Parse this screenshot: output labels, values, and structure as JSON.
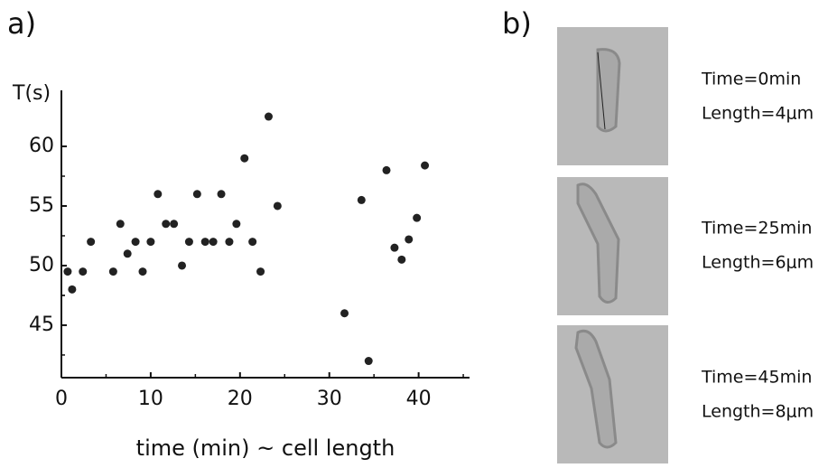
{
  "chart_data": {
    "type": "scatter",
    "panel_label": "a)",
    "ylabel": "T(s)",
    "xlabel": "time (min) ~  cell length",
    "color": "#222222",
    "xlim": [
      0,
      45.7
    ],
    "ylim": [
      40.6,
      64.7
    ],
    "xticks": [
      0,
      10,
      20,
      30,
      40
    ],
    "yticks": [
      45,
      50,
      55,
      60
    ],
    "x": [
      0.7,
      1.2,
      2.4,
      3.3,
      5.8,
      6.6,
      7.4,
      8.3,
      9.1,
      10,
      10.8,
      11.7,
      12.6,
      13.5,
      14.3,
      15.2,
      16.1,
      17,
      17.9,
      18.8,
      19.6,
      20.5,
      21.4,
      22.3,
      23.2,
      24.2,
      31.7,
      33.6,
      34.4,
      36.4,
      37.3,
      38.1,
      38.9,
      39.8,
      40.7
    ],
    "values": [
      49.5,
      48,
      49.5,
      52,
      49.5,
      53.5,
      51,
      52,
      49.5,
      52,
      56,
      53.5,
      53.5,
      50,
      52,
      56,
      52,
      52,
      56,
      52,
      53.5,
      59,
      52,
      49.5,
      62.5,
      55,
      46,
      55.5,
      42,
      58,
      51.5,
      50.5,
      52.2,
      54,
      58.4
    ]
  },
  "panel_b": {
    "panel_label": "b)",
    "frames": [
      {
        "time": "Time=0min",
        "length": "Length=4μm"
      },
      {
        "time": "Time=25min",
        "length": "Length=6μm"
      },
      {
        "time": "Time=45min",
        "length": "Length=8μm"
      }
    ]
  }
}
